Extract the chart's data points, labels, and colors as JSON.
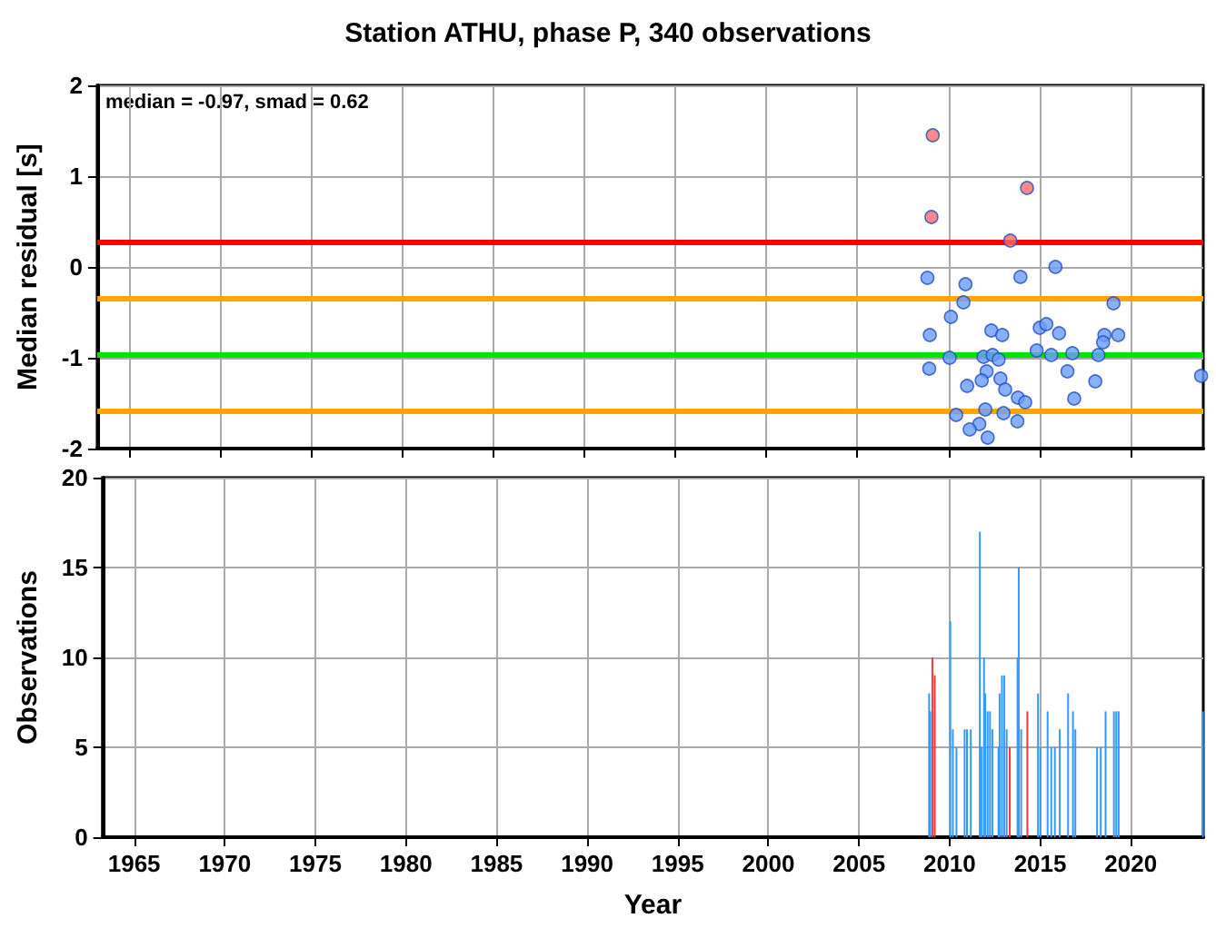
{
  "chart_data": [
    {
      "type": "scatter",
      "title": "Station ATHU, phase P, 340 observations",
      "ylabel": "Median residual [s]",
      "annotations": [
        "median = -0.97, smad = 0.62"
      ],
      "marker": "circle",
      "grid": true,
      "tick_labels": "y",
      "xlim": [
        1963.25,
        2024
      ],
      "xticks": [
        1965,
        1970,
        1975,
        1980,
        1985,
        1990,
        1995,
        2000,
        2005,
        2010,
        2015,
        2020
      ],
      "ylim": [
        -2,
        2
      ],
      "yticks": [
        -2,
        -1,
        0,
        1,
        2
      ],
      "ref_lines": [
        {
          "axis": "y",
          "value": 0.27,
          "color": "#ff0000"
        },
        {
          "axis": "y",
          "value": -0.35,
          "color": "#ffa500"
        },
        {
          "axis": "y",
          "value": -0.97,
          "color": "#00e600"
        },
        {
          "axis": "y",
          "value": -1.59,
          "color": "#ffa500"
        }
      ],
      "series": [
        {
          "color": "#6a9cff",
          "x": [
            2008.85,
            2010.94,
            2013.96,
            2015.88,
            2010.83,
            2019.07,
            2010.14,
            2008.98,
            2012.36,
            2012.96,
            2015.02,
            2015.38,
            2016.08,
            2018.57,
            2018.5,
            2019.33,
            2010.07,
            2008.95,
            2011.93,
            2012.43,
            2012.76,
            2014.85,
            2015.65,
            2016.81,
            2018.24,
            2012.1,
            2011.83,
            2012.86,
            2011.03,
            2013.12,
            2016.54,
            2018.07,
            2013.82,
            2014.22,
            2016.91,
            2023.88,
            2010.43,
            2012.03,
            2013.03,
            2013.79,
            2011.7,
            2011.17,
            2012.16
          ],
          "values": [
            -0.12,
            -0.19,
            -0.11,
            0.0,
            -0.39,
            -0.4,
            -0.55,
            -0.75,
            -0.7,
            -0.75,
            -0.67,
            -0.63,
            -0.73,
            -0.75,
            -0.83,
            -0.75,
            -1.0,
            -1.12,
            -0.99,
            -0.97,
            -1.02,
            -0.92,
            -0.97,
            -0.95,
            -0.97,
            -1.15,
            -1.25,
            -1.23,
            -1.31,
            -1.35,
            -1.15,
            -1.26,
            -1.44,
            -1.49,
            -1.45,
            -1.2,
            -1.63,
            -1.57,
            -1.61,
            -1.7,
            -1.73,
            -1.79,
            -1.88
          ]
        },
        {
          "color": "#ff6a6a",
          "x": [
            2009.14,
            2009.07,
            2014.32,
            2013.4
          ],
          "values": [
            1.45,
            0.55,
            0.87,
            0.29
          ]
        }
      ]
    },
    {
      "type": "bar",
      "xlabel": "Year",
      "ylabel": "Observations",
      "grid": true,
      "xlim": [
        1963.25,
        2024
      ],
      "xticks": [
        1965,
        1970,
        1975,
        1980,
        1985,
        1990,
        1995,
        2000,
        2005,
        2010,
        2015,
        2020
      ],
      "ylim": [
        0,
        20
      ],
      "yticks": [
        0,
        5,
        10,
        15,
        20
      ],
      "series": [
        {
          "color": "#3399ff",
          "x": [
            2008.87,
            2008.93,
            2010.04,
            2010.18,
            2010.38,
            2010.83,
            2010.96,
            2011.17,
            2011.67,
            2011.77,
            2011.9,
            2011.97,
            2012.1,
            2012.23,
            2012.36,
            2012.7,
            2012.76,
            2012.89,
            2013.02,
            2013.15,
            2013.75,
            2013.82,
            2013.95,
            2014.88,
            2015.01,
            2015.41,
            2015.61,
            2015.81,
            2016.08,
            2016.54,
            2016.81,
            2016.94,
            2018.14,
            2018.34,
            2018.61,
            2019.07,
            2019.2,
            2019.33,
            2023.98
          ],
          "values": [
            8,
            7,
            12,
            6,
            5,
            6,
            6,
            6,
            17,
            5,
            10,
            8,
            7,
            7,
            6,
            5,
            8,
            9,
            9,
            6,
            10,
            15,
            6,
            8,
            5,
            7,
            5,
            5,
            6,
            8,
            7,
            6,
            5,
            5,
            7,
            7,
            7,
            7,
            7
          ]
        },
        {
          "color": "#ff3333",
          "x": [
            2009.05,
            2009.18,
            2013.32,
            2014.29
          ],
          "values": [
            10,
            9,
            5,
            7
          ]
        }
      ]
    }
  ]
}
